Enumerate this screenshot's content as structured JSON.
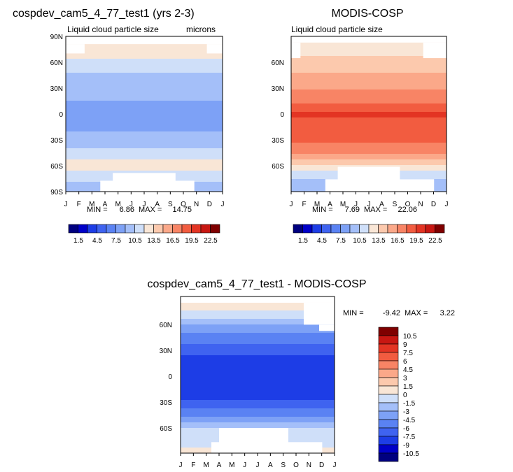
{
  "chart_data": [
    {
      "type": "heatmap",
      "id": "model",
      "title": "cospdev_cam5_4_77_test1 (yrs 2-3)",
      "subtitle": "Liquid cloud particle size",
      "units": "microns",
      "x_tick_labels": [
        "J",
        "F",
        "M",
        "A",
        "M",
        "J",
        "J",
        "A",
        "S",
        "O",
        "N",
        "D",
        "J"
      ],
      "y_tick_labels": [
        "90N",
        "60N",
        "30N",
        "0",
        "30S",
        "60S",
        "90S"
      ],
      "ylim": [
        -90,
        90
      ],
      "stats": {
        "min_label": "MIN =",
        "min": "6.86",
        "max_label": "MAX =",
        "max": "14.75"
      },
      "colorbar": {
        "orientation": "horizontal",
        "labels": [
          "1.5",
          "4.5",
          "7.5",
          "10.5",
          "13.5",
          "16.5",
          "19.5",
          "22.5"
        ],
        "levels": [
          0,
          1.5,
          3,
          4.5,
          6,
          7.5,
          9,
          10.5,
          12,
          13.5,
          15,
          16.5,
          18,
          19.5,
          21,
          22.5,
          24
        ]
      },
      "zonal_profile": [
        {
          "lat": 75,
          "value": 12.8
        },
        {
          "lat": 60,
          "value": 11.8
        },
        {
          "lat": 45,
          "value": 10.2
        },
        {
          "lat": 30,
          "value": 9.4
        },
        {
          "lat": 15,
          "value": 9.0
        },
        {
          "lat": 0,
          "value": 8.4
        },
        {
          "lat": -15,
          "value": 8.8
        },
        {
          "lat": -30,
          "value": 9.6
        },
        {
          "lat": -45,
          "value": 10.8
        },
        {
          "lat": -60,
          "value": 12.8
        },
        {
          "lat": -75,
          "value": 10.8
        },
        {
          "lat": -85,
          "value": 9.6
        }
      ]
    },
    {
      "type": "heatmap",
      "id": "obs",
      "title": "MODIS-COSP",
      "subtitle": "Liquid cloud particle size",
      "x_tick_labels": [
        "J",
        "F",
        "M",
        "A",
        "M",
        "J",
        "J",
        "A",
        "S",
        "O",
        "N",
        "D",
        "J"
      ],
      "y_tick_labels": [
        "60N",
        "30N",
        "0",
        "30S",
        "60S"
      ],
      "ylim": [
        -90,
        90
      ],
      "stats": {
        "min_label": "MIN =",
        "min": "7.69",
        "max_label": "MAX =",
        "max": "22.06"
      },
      "colorbar": {
        "orientation": "horizontal",
        "labels": [
          "1.5",
          "4.5",
          "7.5",
          "10.5",
          "13.5",
          "16.5",
          "19.5",
          "22.5"
        ],
        "levels": [
          0,
          1.5,
          3,
          4.5,
          6,
          7.5,
          9,
          10.5,
          12,
          13.5,
          15,
          16.5,
          18,
          19.5,
          21,
          22.5,
          24
        ]
      },
      "zonal_profile": [
        {
          "lat": 75,
          "value": 13.2
        },
        {
          "lat": 60,
          "value": 13.8
        },
        {
          "lat": 45,
          "value": 15.2
        },
        {
          "lat": 30,
          "value": 16.4
        },
        {
          "lat": 15,
          "value": 17.8
        },
        {
          "lat": 0,
          "value": 19.6
        },
        {
          "lat": -15,
          "value": 19.2
        },
        {
          "lat": -30,
          "value": 18.2
        },
        {
          "lat": -45,
          "value": 16.6
        },
        {
          "lat": -60,
          "value": 13.0
        },
        {
          "lat": -75,
          "value": 10.6
        },
        {
          "lat": -85,
          "value": 9.4
        }
      ]
    },
    {
      "type": "heatmap",
      "id": "diff",
      "title": "cospdev_cam5_4_77_test1 - MODIS-COSP",
      "x_tick_labels": [
        "J",
        "F",
        "M",
        "A",
        "M",
        "J",
        "J",
        "A",
        "S",
        "O",
        "N",
        "D",
        "J"
      ],
      "y_tick_labels": [
        "60N",
        "30N",
        "0",
        "30S",
        "60S"
      ],
      "ylim": [
        -90,
        90
      ],
      "stats": {
        "min_label": "MIN =",
        "min": "-9.42",
        "max_label": "MAX =",
        "max": "3.22"
      },
      "colorbar": {
        "orientation": "vertical",
        "labels": [
          "10.5",
          "9",
          "7.5",
          "6",
          "4.5",
          "3",
          "1.5",
          "0",
          "-1.5",
          "-3",
          "-4.5",
          "-6",
          "-7.5",
          "-9",
          "-10.5"
        ],
        "levels": [
          -12,
          -10.5,
          -9,
          -7.5,
          -6,
          -4.5,
          -3,
          -1.5,
          0,
          1.5,
          3,
          4.5,
          6,
          7.5,
          9,
          10.5,
          12
        ]
      },
      "zonal_profile": [
        {
          "lat": 75,
          "value": 0.5
        },
        {
          "lat": 60,
          "value": -2.4
        },
        {
          "lat": 45,
          "value": -5.0
        },
        {
          "lat": 30,
          "value": -6.6
        },
        {
          "lat": 15,
          "value": -8.4
        },
        {
          "lat": 0,
          "value": -8.9
        },
        {
          "lat": -15,
          "value": -8.6
        },
        {
          "lat": -30,
          "value": -7.4
        },
        {
          "lat": -45,
          "value": -5.0
        },
        {
          "lat": -60,
          "value": -1.6
        },
        {
          "lat": -75,
          "value": -0.8
        },
        {
          "lat": -85,
          "value": 0.2
        }
      ]
    }
  ],
  "palette": [
    "#00007f",
    "#0000c8",
    "#1d3de6",
    "#3f63f0",
    "#5a82f3",
    "#7da1f6",
    "#a4bff9",
    "#cfdff9",
    "#f9e6d6",
    "#fcc9ad",
    "#fba889",
    "#f88465",
    "#f25c40",
    "#e33423",
    "#c81712",
    "#7f0000"
  ]
}
